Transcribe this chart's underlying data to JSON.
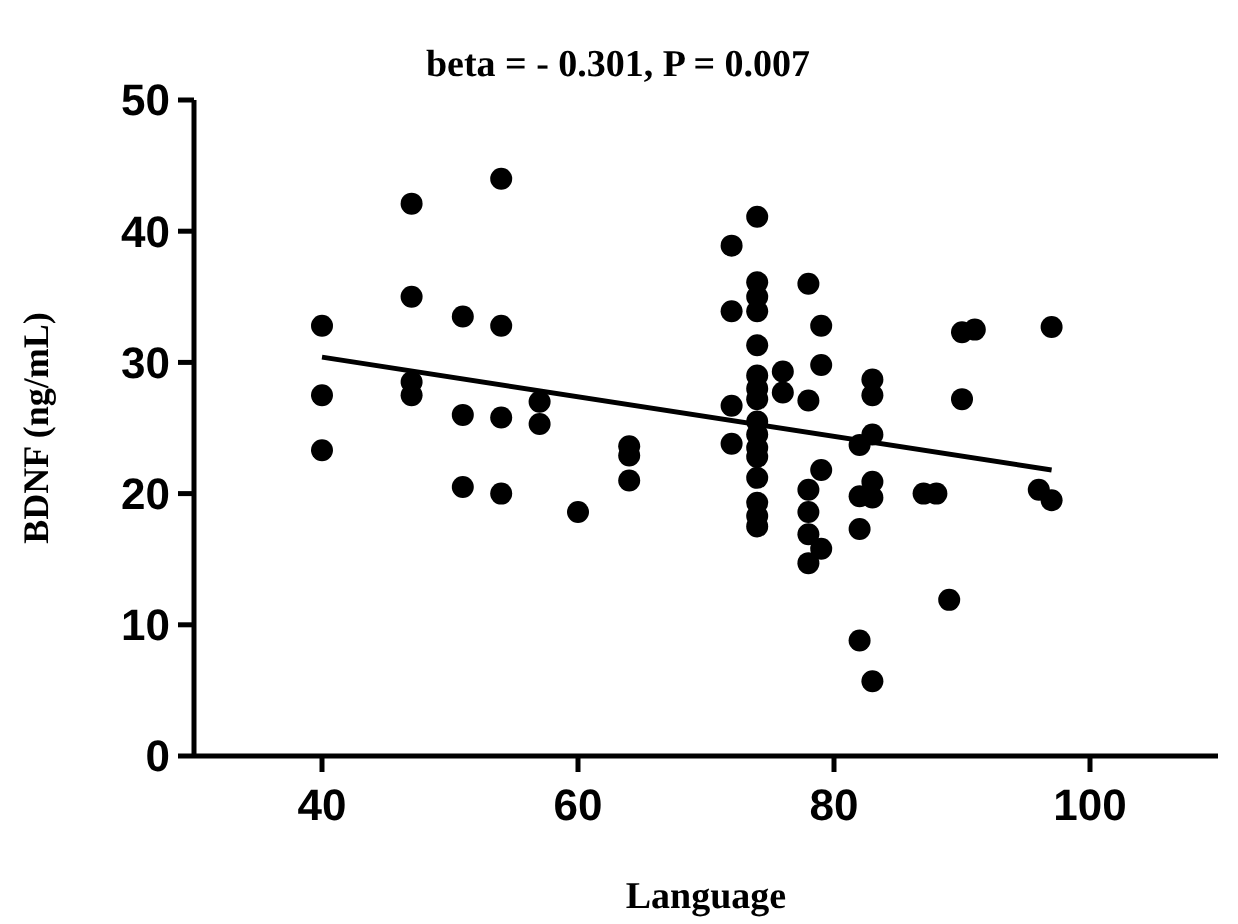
{
  "chart_data": {
    "type": "scatter",
    "title": "beta = - 0.301, P = 0.007",
    "xlabel": "Language",
    "ylabel": "BDNF (ng/mL)",
    "xlim": [
      30,
      110
    ],
    "xticks": [
      40,
      60,
      80,
      100
    ],
    "ylim": [
      0,
      50
    ],
    "yticks": [
      0,
      10,
      20,
      30,
      40,
      50
    ],
    "grid": false,
    "marker": "circle",
    "series": [
      {
        "color": "#000000",
        "x": [
          40,
          40,
          40,
          47,
          47,
          47,
          47,
          51,
          51,
          51,
          54,
          54,
          54,
          54,
          57,
          57,
          60,
          64,
          64,
          64,
          72,
          72,
          72,
          72,
          74,
          74,
          74,
          74,
          74,
          74,
          74,
          74,
          74,
          74,
          74,
          74,
          74,
          74,
          74,
          74,
          76,
          76,
          78,
          78,
          78,
          78,
          78,
          78,
          79,
          79,
          79,
          79,
          82,
          82,
          82,
          82,
          83,
          83,
          83,
          83,
          83,
          83,
          87,
          88,
          89,
          90,
          90,
          91,
          96,
          97,
          97
        ],
        "values": [
          32.8,
          27.5,
          23.3,
          42.1,
          35,
          28.5,
          27.5,
          33.5,
          26,
          20.5,
          44,
          32.8,
          25.8,
          20,
          27,
          25.3,
          18.6,
          23.6,
          22.9,
          21,
          38.9,
          33.9,
          26.7,
          23.8,
          41.1,
          36.1,
          35,
          33.9,
          31.3,
          29,
          28,
          27.2,
          25.5,
          24.5,
          23.5,
          22.8,
          21.2,
          19.3,
          18.3,
          17.5,
          29.3,
          27.7,
          36,
          27.1,
          20.3,
          18.6,
          16.9,
          14.7,
          32.8,
          29.8,
          21.8,
          15.8,
          23.7,
          19.8,
          17.3,
          8.8,
          28.7,
          27.5,
          24.5,
          20.9,
          19.7,
          5.7,
          20,
          20,
          11.9,
          32.3,
          27.2,
          32.5,
          20.3,
          32.7,
          19.5
        ]
      },
      {
        "type": "line",
        "color": "#000000",
        "x": [
          40,
          97
        ],
        "values": [
          30.4,
          21.8
        ],
        "marker": "none",
        "line_style": "solid"
      }
    ]
  }
}
